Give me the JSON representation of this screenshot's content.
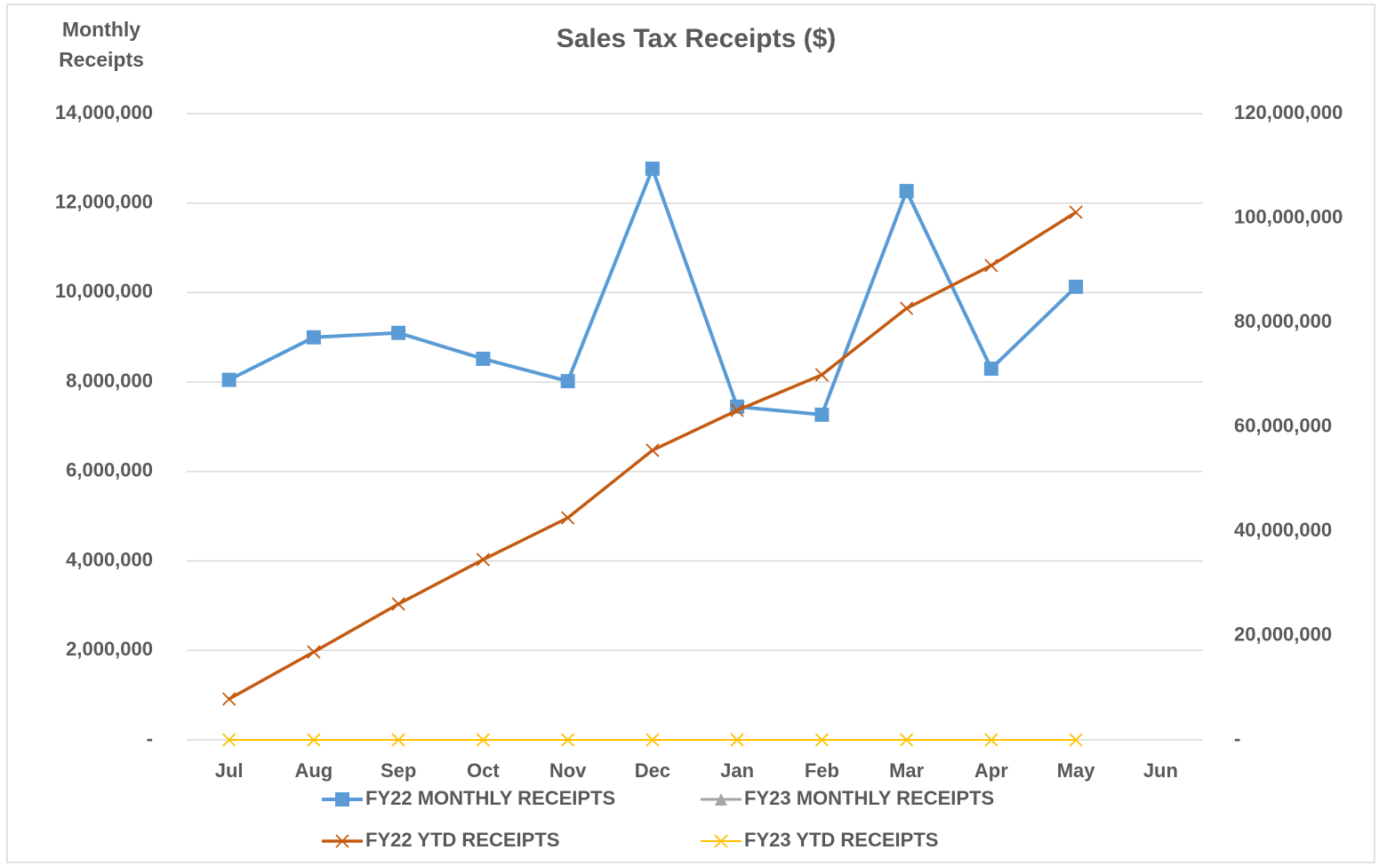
{
  "chart_data": {
    "type": "line",
    "title": "Sales Tax Receipts ($)",
    "y_label": "Monthly Receipts",
    "categories": [
      "Jul",
      "Aug",
      "Sep",
      "Oct",
      "Nov",
      "Dec",
      "Jan",
      "Feb",
      "Mar",
      "Apr",
      "May",
      "Jun"
    ],
    "series": [
      {
        "name": "FY22 MONTHLY RECEIPTS",
        "color": "#5b9bd5",
        "marker": "square",
        "axis": "y",
        "values": [
          8050000,
          9000000,
          9100000,
          8520000,
          8020000,
          12770000,
          7450000,
          7270000,
          12270000,
          8300000,
          10130000,
          null
        ]
      },
      {
        "name": "FY23 MONTHLY RECEIPTS",
        "color": "#a5a5a5",
        "marker": "triangle",
        "axis": "y",
        "values": [
          null,
          null,
          null,
          null,
          null,
          null,
          null,
          null,
          null,
          null,
          null,
          null
        ]
      },
      {
        "name": "FY22 YTD RECEIPTS",
        "color": "#c55a11",
        "marker": "x",
        "axis": "y2",
        "values": [
          7830000,
          16850000,
          26040000,
          34550000,
          42550000,
          55500000,
          63150000,
          69960000,
          82700000,
          90900000,
          101100000,
          null
        ]
      },
      {
        "name": "FY23 YTD RECEIPTS",
        "color": "#ffc000",
        "marker": "x",
        "axis": "y2",
        "values": [
          0,
          0,
          0,
          0,
          0,
          0,
          0,
          0,
          0,
          0,
          0,
          null
        ]
      }
    ],
    "ylim": [
      0,
      14000000
    ],
    "yticks": [
      {
        "value": 0,
        "label": "-"
      },
      {
        "value": 2000000,
        "label": "2,000,000"
      },
      {
        "value": 4000000,
        "label": "4,000,000"
      },
      {
        "value": 6000000,
        "label": "6,000,000"
      },
      {
        "value": 8000000,
        "label": "8,000,000"
      },
      {
        "value": 10000000,
        "label": "10,000,000"
      },
      {
        "value": 12000000,
        "label": "12,000,000"
      },
      {
        "value": 14000000,
        "label": "14,000,000"
      }
    ],
    "y2lim": [
      0,
      120000000
    ],
    "y2ticks": [
      {
        "value": 0,
        "label": "-"
      },
      {
        "value": 20000000,
        "label": "20,000,000"
      },
      {
        "value": 40000000,
        "label": "40,000,000"
      },
      {
        "value": 60000000,
        "label": "60,000,000"
      },
      {
        "value": 80000000,
        "label": "80,000,000"
      },
      {
        "value": 100000000,
        "label": "100,000,000"
      },
      {
        "value": 120000000,
        "label": "120,000,000"
      }
    ],
    "grid": true,
    "legend": "bottom"
  }
}
